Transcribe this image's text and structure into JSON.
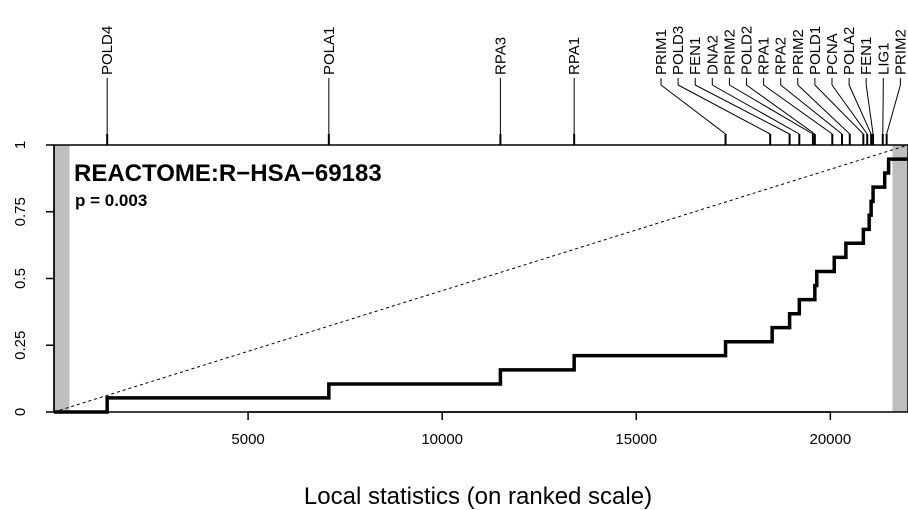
{
  "chart_data": {
    "type": "line",
    "title": "REACTOME:R−HSA−69183",
    "subtitle": "p = 0.003",
    "xlabel": "Local statistics (on ranked scale)",
    "ylabel": "",
    "xlim": [
      0,
      22000
    ],
    "ylim": [
      0,
      1
    ],
    "x_ticks": [
      5000,
      10000,
      15000,
      20000
    ],
    "x_tick_labels": [
      "5000",
      "10000",
      "15000",
      "20000"
    ],
    "y_ticks": [
      0,
      0.25,
      0.5,
      0.75,
      1
    ],
    "y_tick_labels": [
      "0",
      "0.25",
      "0.5",
      "0.75",
      "1"
    ],
    "shaded_regions": [
      [
        0,
        400
      ],
      [
        21600,
        22000
      ]
    ],
    "reference_line": {
      "from": [
        0,
        0
      ],
      "to": [
        22000,
        1
      ],
      "style": "dotted"
    },
    "series": [
      {
        "x": [
          1370,
          7080,
          11500,
          13400,
          17300,
          18500,
          18950,
          19200,
          19600,
          19650,
          20100,
          20400,
          20850,
          21000,
          21050,
          21100,
          21400,
          21500
        ],
        "y": [
          0.053,
          0.105,
          0.158,
          0.211,
          0.263,
          0.316,
          0.368,
          0.421,
          0.474,
          0.526,
          0.579,
          0.632,
          0.684,
          0.737,
          0.789,
          0.842,
          0.895,
          0.947
        ]
      }
    ],
    "genes": [
      {
        "name": "POLD4",
        "x": 1370
      },
      {
        "name": "POLA1",
        "x": 7080
      },
      {
        "name": "RPA3",
        "x": 11500
      },
      {
        "name": "RPA1",
        "x": 13400
      },
      {
        "name": "PRIM1",
        "x": 17300
      },
      {
        "name": "POLD3",
        "x": 18450
      },
      {
        "name": "FEN1",
        "x": 18950
      },
      {
        "name": "DNA2",
        "x": 19200
      },
      {
        "name": "PRIM2",
        "x": 19550
      },
      {
        "name": "POLD2",
        "x": 19600
      },
      {
        "name": "RPA1",
        "x": 20050
      },
      {
        "name": "RPA2",
        "x": 20300
      },
      {
        "name": "PRIM2",
        "x": 20500
      },
      {
        "name": "POLD1",
        "x": 20850
      },
      {
        "name": "PCNA",
        "x": 20950
      },
      {
        "name": "POLA2",
        "x": 21050
      },
      {
        "name": "FEN1",
        "x": 21100
      },
      {
        "name": "LIG1",
        "x": 21350
      },
      {
        "name": "PRIM2",
        "x": 21450
      }
    ]
  }
}
